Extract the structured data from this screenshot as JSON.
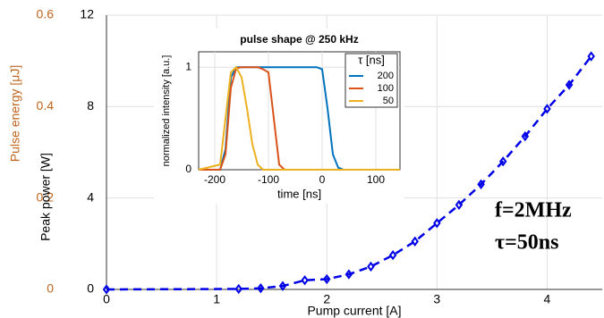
{
  "chart_data": [
    {
      "type": "line",
      "xlabel": "Pump current [A]",
      "ylabel": "Peak power [W]",
      "y2label": "Pulse energy [μJ]",
      "annotations": [
        "f=2MHz",
        "τ=50ns"
      ],
      "x": [
        0,
        1.2,
        1.4,
        1.6,
        1.8,
        2.0,
        2.2,
        2.4,
        2.6,
        2.8,
        3.0,
        3.2,
        3.4,
        3.6,
        3.8,
        4.0,
        4.2,
        4.4
      ],
      "series": [
        {
          "name": "Peak power",
          "color": "#0000e6",
          "values": [
            0,
            0.02,
            0.05,
            0.15,
            0.4,
            0.45,
            0.66,
            1.0,
            1.5,
            2.1,
            2.9,
            3.7,
            4.6,
            5.6,
            6.7,
            7.9,
            8.95,
            10.2
          ]
        }
      ],
      "xlim": [
        0,
        4.5
      ],
      "xticks": [
        0,
        1,
        2,
        3,
        4
      ],
      "ylim": [
        0,
        12
      ],
      "yticks": [
        0,
        4,
        8,
        12
      ],
      "y2lim": [
        0,
        0.6
      ],
      "y2ticks": [
        0,
        0.2,
        0.4,
        0.6
      ],
      "y2color": "#c0651e",
      "grid": true,
      "linestyle": "dashed"
    },
    {
      "type": "line",
      "title": "pulse shape @ 250 kHz",
      "xlabel": "time [ns]",
      "ylabel": "normalized intensity [a.u.]",
      "legend_title": "τ [ns]",
      "legend": "upper right",
      "x": [
        -230,
        -190,
        -180,
        -170,
        -160,
        -150,
        -140,
        -130,
        -120,
        -110,
        -100,
        -90,
        -80,
        -70,
        -10,
        0,
        10,
        20,
        30,
        40,
        145
      ],
      "series": [
        {
          "name": "200",
          "color": "#0072bd",
          "values": [
            0,
            0,
            0.2,
            0.9,
            1,
            1,
            1,
            1,
            1,
            1,
            1,
            1,
            1,
            1,
            1,
            0.98,
            0.6,
            0.15,
            0.02,
            0,
            0
          ]
        },
        {
          "name": "100",
          "color": "#d95319",
          "values": [
            0,
            0,
            0.15,
            0.8,
            0.99,
            1,
            1,
            1,
            1,
            0.98,
            0.95,
            0.5,
            0.05,
            0,
            0,
            0,
            0,
            0,
            0,
            0,
            0
          ]
        },
        {
          "name": "50",
          "color": "#edb120",
          "values": [
            0,
            0.05,
            0.5,
            0.95,
            1,
            0.9,
            0.6,
            0.25,
            0.05,
            0,
            0,
            0,
            0,
            0,
            0,
            0,
            0,
            0,
            0,
            0,
            0
          ]
        }
      ],
      "xlim": [
        -230,
        145
      ],
      "xticks": [
        -200,
        -100,
        0,
        100
      ],
      "ylim": [
        0,
        1.15
      ],
      "yticks": [
        0,
        1
      ],
      "grid": true
    }
  ]
}
